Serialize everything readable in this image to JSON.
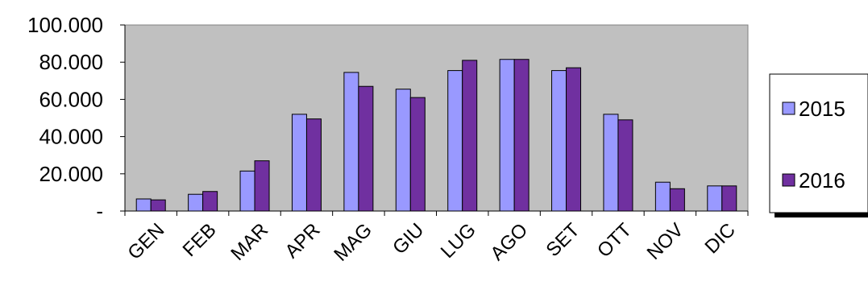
{
  "chart_data": {
    "type": "bar",
    "title": "",
    "xlabel": "",
    "ylabel": "",
    "categories": [
      "GEN",
      "FEB",
      "MAR",
      "APR",
      "MAG",
      "GIU",
      "LUG",
      "AGO",
      "SET",
      "OTT",
      "NOV",
      "DIC"
    ],
    "series": [
      {
        "name": "2015",
        "values": [
          6500,
          9000,
          21500,
          52000,
          74500,
          65500,
          75500,
          81500,
          75500,
          52000,
          15500,
          13500
        ]
      },
      {
        "name": "2016",
        "values": [
          6000,
          10500,
          27000,
          49500,
          67000,
          61000,
          81000,
          81500,
          77000,
          49000,
          12000,
          13500
        ]
      }
    ],
    "ylim": [
      0,
      100000
    ],
    "yticks": [
      0,
      20000,
      40000,
      60000,
      80000,
      100000
    ],
    "ytick_labels": [
      "-",
      "20.000",
      "40.000",
      "60.000",
      "80.000",
      "100.000"
    ],
    "grid": false,
    "legend_position": "right",
    "colors": {
      "series": [
        "#9999ff",
        "#7030a0"
      ],
      "plot_background": "#c0c0c0",
      "bar_outline": "#000000"
    }
  }
}
